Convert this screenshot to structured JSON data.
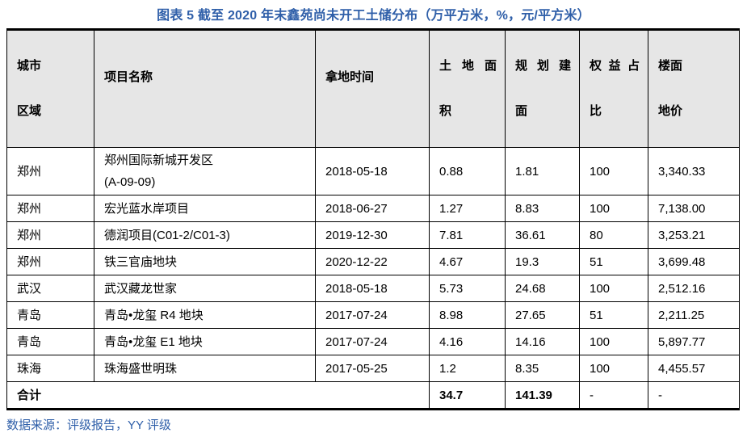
{
  "figure": {
    "title": "图表 5 截至 2020 年末鑫苑尚未开工土储分布（万平方米，%，元/平方米）",
    "source": "数据来源：评级报告，YY 评级"
  },
  "colors": {
    "accent_blue": "#2F5FA9",
    "header_bg": "#E6E6E6",
    "border": "#000000"
  },
  "table": {
    "headers": [
      {
        "line1": "城市",
        "line2": "区域"
      },
      {
        "line1": "项目名称",
        "line2": ""
      },
      {
        "line1": "拿地时间",
        "line2": ""
      },
      {
        "line1": "土 地 面",
        "line2": "积"
      },
      {
        "line1": "规 划 建",
        "line2": "面"
      },
      {
        "line1": "权 益 占",
        "line2": "比"
      },
      {
        "line1": "楼面",
        "line2": "地价"
      }
    ],
    "rows": [
      {
        "city": "郑州",
        "project": [
          "郑州国际新城开发区",
          "(A-09-09)"
        ],
        "date": "2018-05-18",
        "land_area": "0.88",
        "planned_gfa": "1.81",
        "equity": "100",
        "floor_price": "3,340.33"
      },
      {
        "city": "郑州",
        "project": "宏光蓝水岸项目",
        "date": "2018-06-27",
        "land_area": "1.27",
        "planned_gfa": "8.83",
        "equity": "100",
        "floor_price": "7,138.00"
      },
      {
        "city": "郑州",
        "project": "德润项目(C01-2/C01-3)",
        "date": "2019-12-30",
        "land_area": "7.81",
        "planned_gfa": "36.61",
        "equity": "80",
        "floor_price": "3,253.21"
      },
      {
        "city": "郑州",
        "project": "铁三官庙地块",
        "date": "2020-12-22",
        "land_area": "4.67",
        "planned_gfa": "19.3",
        "equity": "51",
        "floor_price": "3,699.48"
      },
      {
        "city": "武汉",
        "project": "武汉藏龙世家",
        "date": "2018-05-18",
        "land_area": "5.73",
        "planned_gfa": "24.68",
        "equity": "100",
        "floor_price": "2,512.16"
      },
      {
        "city": "青岛",
        "project": "青岛•龙玺 R4 地块",
        "date": "2017-07-24",
        "land_area": "8.98",
        "planned_gfa": "27.65",
        "equity": "51",
        "floor_price": "2,211.25"
      },
      {
        "city": "青岛",
        "project": "青岛•龙玺 E1 地块",
        "date": "2017-07-24",
        "land_area": "4.16",
        "planned_gfa": "14.16",
        "equity": "100",
        "floor_price": "5,897.77"
      },
      {
        "city": "珠海",
        "project": "珠海盛世明珠",
        "date": "2017-05-25",
        "land_area": "1.2",
        "planned_gfa": "8.35",
        "equity": "100",
        "floor_price": "4,455.57"
      }
    ],
    "total": {
      "label": "合计",
      "land_area": "34.7",
      "planned_gfa": "141.39",
      "equity": "-",
      "floor_price": "-"
    }
  }
}
